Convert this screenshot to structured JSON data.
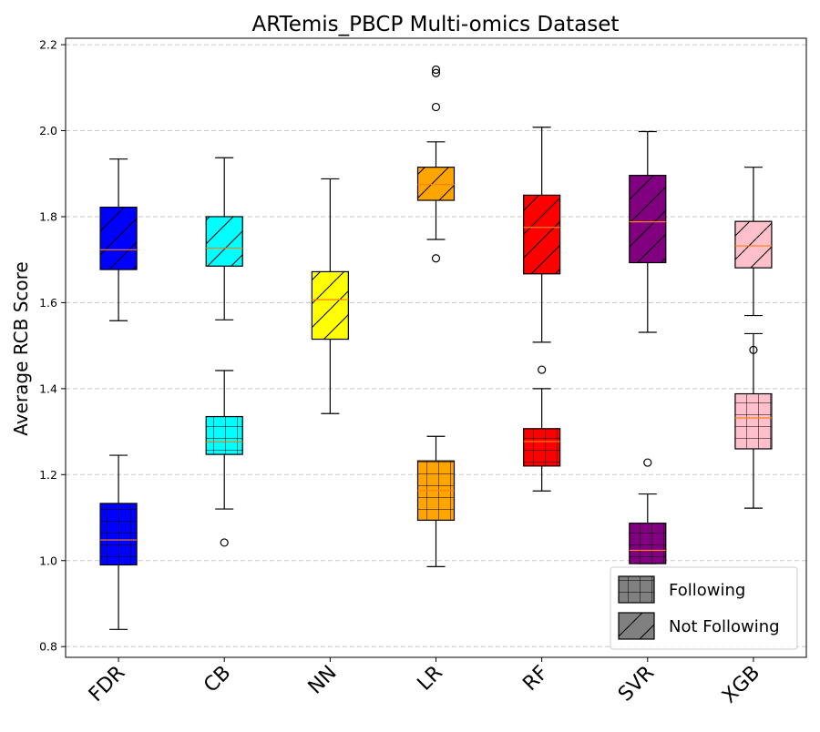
{
  "chart_data": {
    "type": "box",
    "title": "ARTemis_PBCP Multi-omics Dataset",
    "xlabel": "",
    "ylabel": "Average RCB Score",
    "ylim": [
      0.775,
      2.215
    ],
    "yticks": [
      0.8,
      1.0,
      1.2,
      1.4,
      1.6,
      1.8,
      2.0,
      2.2
    ],
    "ytick_labels": [
      "0.8",
      "1.0",
      "1.2",
      "1.4",
      "1.6",
      "1.8",
      "2.0",
      "2.2"
    ],
    "grid": "y-dashed",
    "legend_position": "bottom-right",
    "categories": [
      "FDR",
      "CB",
      "NN",
      "LR",
      "RF",
      "SVR",
      "XGB"
    ],
    "colors": {
      "FDR": "#0000ff",
      "CB": "#00ffff",
      "NN": "#ffff00",
      "LR": "#ffa500",
      "RF": "#ff0000",
      "SVR": "#800080",
      "XGB": "#ffc0cb",
      "median": "#ff7f0e",
      "legend_swatch": "#808080",
      "grid": "#c8c8c8"
    },
    "series": [
      {
        "name": "Following",
        "hatch": "grid",
        "boxes": [
          {
            "category": "FDR",
            "whislo": 0.84,
            "q1": 0.99,
            "med": 1.048,
            "q3": 1.133,
            "whishi": 1.245,
            "fliers": []
          },
          {
            "category": "CB",
            "whislo": 1.12,
            "q1": 1.247,
            "med": 1.276,
            "q3": 1.335,
            "whishi": 1.442,
            "fliers": [
              1.042
            ]
          },
          {
            "category": "LR",
            "whislo": 0.986,
            "q1": 1.094,
            "med": 1.163,
            "q3": 1.232,
            "whishi": 1.289,
            "fliers": []
          },
          {
            "category": "RF",
            "whislo": 1.162,
            "q1": 1.22,
            "med": 1.277,
            "q3": 1.307,
            "whishi": 1.4,
            "fliers": [
              1.444
            ]
          },
          {
            "category": "SVR",
            "whislo": 0.993,
            "q1": 0.993,
            "med": 1.024,
            "q3": 1.087,
            "whishi": 1.155,
            "fliers": [
              1.228
            ]
          },
          {
            "category": "XGB",
            "whislo": 1.122,
            "q1": 1.26,
            "med": 1.332,
            "q3": 1.388,
            "whishi": 1.528,
            "fliers": [
              1.49
            ]
          }
        ]
      },
      {
        "name": "Not Following",
        "hatch": "diagonal",
        "boxes": [
          {
            "category": "FDR",
            "whislo": 1.558,
            "q1": 1.677,
            "med": 1.723,
            "q3": 1.822,
            "whishi": 1.934,
            "fliers": []
          },
          {
            "category": "CB",
            "whislo": 1.56,
            "q1": 1.685,
            "med": 1.727,
            "q3": 1.8,
            "whishi": 1.937,
            "fliers": []
          },
          {
            "category": "NN",
            "whislo": 1.342,
            "q1": 1.515,
            "med": 1.607,
            "q3": 1.672,
            "whishi": 1.888,
            "fliers": []
          },
          {
            "category": "LR",
            "whislo": 1.747,
            "q1": 1.838,
            "med": 1.875,
            "q3": 1.915,
            "whishi": 1.974,
            "fliers": [
              1.703,
              2.055,
              2.134,
              2.142
            ]
          },
          {
            "category": "RF",
            "whislo": 1.508,
            "q1": 1.667,
            "med": 1.775,
            "q3": 1.85,
            "whishi": 2.008,
            "fliers": []
          },
          {
            "category": "SVR",
            "whislo": 1.531,
            "q1": 1.693,
            "med": 1.788,
            "q3": 1.896,
            "whishi": 1.998,
            "fliers": []
          },
          {
            "category": "XGB",
            "whislo": 1.57,
            "q1": 1.681,
            "med": 1.732,
            "q3": 1.789,
            "whishi": 1.915,
            "fliers": []
          }
        ]
      }
    ]
  }
}
